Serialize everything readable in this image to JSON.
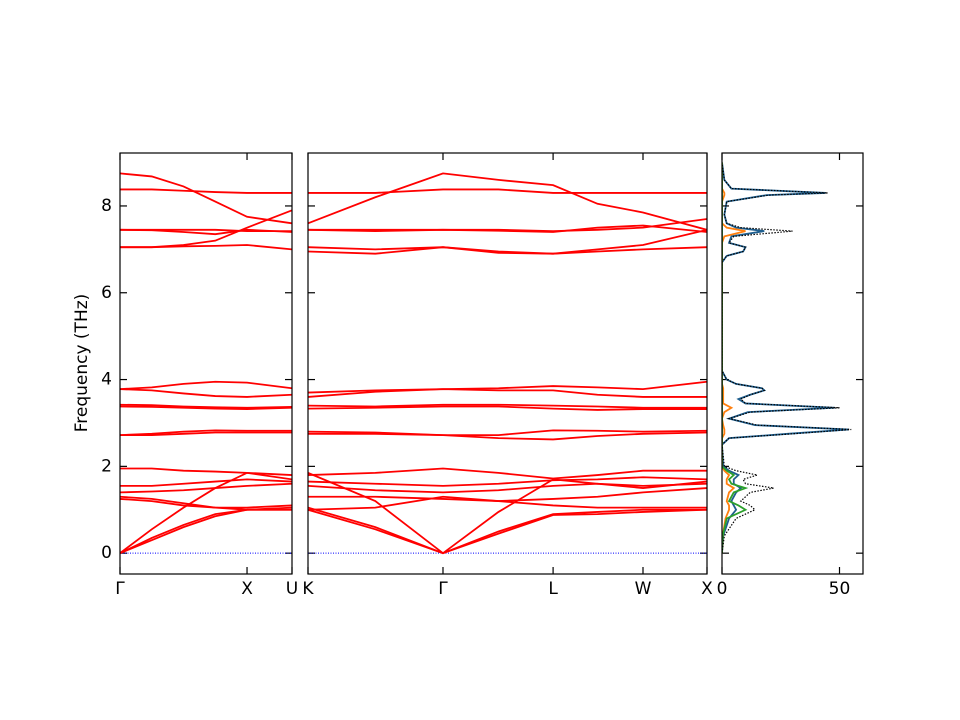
{
  "chart_data": [
    {
      "type": "line",
      "ylabel": "Frequency (THz)",
      "color": "#ff0000",
      "hline": 0,
      "hline_color": "#0000ff",
      "x": [
        0,
        0.25,
        0.5,
        0.75,
        1.0,
        1.354
      ],
      "xlim": [
        0,
        1.354
      ],
      "xticks": [
        {
          "value": 0,
          "label": "Γ"
        },
        {
          "value": 1.0,
          "label": "X"
        },
        {
          "value": 1.354,
          "label": "U"
        }
      ],
      "ylim": [
        -0.48,
        9.22
      ],
      "yticks": [
        0,
        2,
        4,
        6,
        8
      ],
      "series": [
        {
          "values": [
            8.75,
            8.68,
            8.45,
            8.1,
            7.75,
            7.6
          ]
        },
        {
          "values": [
            8.38,
            8.38,
            8.35,
            8.32,
            8.3,
            8.3
          ]
        },
        {
          "values": [
            7.45,
            7.45,
            7.45,
            7.45,
            7.42,
            7.42
          ]
        },
        {
          "values": [
            7.45,
            7.44,
            7.4,
            7.35,
            7.45,
            7.4
          ]
        },
        {
          "values": [
            7.05,
            7.05,
            7.1,
            7.2,
            7.5,
            7.9
          ]
        },
        {
          "values": [
            7.05,
            7.05,
            7.07,
            7.08,
            7.1,
            7.0
          ]
        },
        {
          "values": [
            3.78,
            3.82,
            3.9,
            3.95,
            3.93,
            3.8
          ]
        },
        {
          "values": [
            3.78,
            3.75,
            3.68,
            3.62,
            3.6,
            3.65
          ]
        },
        {
          "values": [
            3.42,
            3.41,
            3.38,
            3.36,
            3.35,
            3.37
          ]
        },
        {
          "values": [
            3.38,
            3.37,
            3.35,
            3.33,
            3.32,
            3.35
          ]
        },
        {
          "values": [
            2.72,
            2.75,
            2.8,
            2.83,
            2.82,
            2.82
          ]
        },
        {
          "values": [
            2.72,
            2.72,
            2.75,
            2.78,
            2.78,
            2.78
          ]
        },
        {
          "values": [
            1.95,
            1.95,
            1.9,
            1.88,
            1.85,
            1.8
          ]
        },
        {
          "values": [
            1.55,
            1.55,
            1.6,
            1.65,
            1.7,
            1.65
          ]
        },
        {
          "values": [
            1.4,
            1.42,
            1.45,
            1.5,
            1.55,
            1.6
          ]
        },
        {
          "values": [
            1.3,
            1.25,
            1.15,
            1.05,
            1.0,
            1.0
          ]
        },
        {
          "values": [
            1.25,
            1.2,
            1.1,
            1.05,
            1.05,
            1.1
          ]
        },
        {
          "values": [
            0,
            0.55,
            1.05,
            1.5,
            1.85,
            1.7
          ]
        },
        {
          "values": [
            0,
            0.35,
            0.65,
            0.9,
            1.0,
            1.0
          ]
        },
        {
          "values": [
            0,
            0.3,
            0.6,
            0.85,
            1.0,
            1.05
          ]
        }
      ]
    },
    {
      "type": "line",
      "color": "#ff0000",
      "hline": 0,
      "hline_color": "#0000ff",
      "x": [
        0,
        0.53,
        1.063,
        1.5,
        1.93,
        2.28,
        2.638,
        3.142
      ],
      "xlim": [
        0,
        3.142
      ],
      "xticks": [
        {
          "value": 0,
          "label": "K"
        },
        {
          "value": 1.063,
          "label": "Γ"
        },
        {
          "value": 1.93,
          "label": "L"
        },
        {
          "value": 2.638,
          "label": "W"
        },
        {
          "value": 3.142,
          "label": "X"
        }
      ],
      "series": [
        {
          "values": [
            8.3,
            8.3,
            8.38,
            8.38,
            8.3,
            8.3,
            8.3,
            8.3
          ]
        },
        {
          "values": [
            7.6,
            8.2,
            8.75,
            8.6,
            8.48,
            8.05,
            7.85,
            7.45
          ]
        },
        {
          "values": [
            7.45,
            7.45,
            7.45,
            7.45,
            7.42,
            7.45,
            7.5,
            7.7
          ]
        },
        {
          "values": [
            7.45,
            7.42,
            7.45,
            7.43,
            7.4,
            7.5,
            7.55,
            7.4
          ]
        },
        {
          "values": [
            7.05,
            7.0,
            7.05,
            6.95,
            6.9,
            7.0,
            7.1,
            7.45
          ]
        },
        {
          "values": [
            6.95,
            6.9,
            7.05,
            6.92,
            6.9,
            6.95,
            7.0,
            7.05
          ]
        },
        {
          "values": [
            3.7,
            3.75,
            3.78,
            3.8,
            3.85,
            3.82,
            3.78,
            3.95
          ]
        },
        {
          "values": [
            3.6,
            3.72,
            3.78,
            3.75,
            3.75,
            3.65,
            3.6,
            3.6
          ]
        },
        {
          "values": [
            3.4,
            3.38,
            3.42,
            3.42,
            3.4,
            3.38,
            3.35,
            3.35
          ]
        },
        {
          "values": [
            3.33,
            3.35,
            3.38,
            3.38,
            3.33,
            3.3,
            3.32,
            3.32
          ]
        },
        {
          "values": [
            2.8,
            2.78,
            2.72,
            2.72,
            2.83,
            2.82,
            2.8,
            2.82
          ]
        },
        {
          "values": [
            2.75,
            2.75,
            2.72,
            2.65,
            2.62,
            2.7,
            2.75,
            2.78
          ]
        },
        {
          "values": [
            1.8,
            1.85,
            1.95,
            1.85,
            1.72,
            1.8,
            1.9,
            1.9
          ]
        },
        {
          "values": [
            1.65,
            1.6,
            1.55,
            1.6,
            1.68,
            1.7,
            1.75,
            1.7
          ]
        },
        {
          "values": [
            1.55,
            1.45,
            1.4,
            1.45,
            1.55,
            1.6,
            1.55,
            1.6
          ]
        },
        {
          "values": [
            1.3,
            1.3,
            1.25,
            1.2,
            1.25,
            1.3,
            1.4,
            1.5
          ]
        },
        {
          "values": [
            1.0,
            1.05,
            1.3,
            1.2,
            1.1,
            1.05,
            1.05,
            1.05
          ]
        },
        {
          "values": [
            1.85,
            1.2,
            0,
            0.95,
            1.7,
            1.6,
            1.5,
            1.65
          ]
        },
        {
          "values": [
            1.05,
            0.6,
            0,
            0.5,
            0.9,
            0.95,
            1.0,
            1.0
          ]
        },
        {
          "values": [
            1.0,
            0.55,
            0,
            0.45,
            0.88,
            0.9,
            0.95,
            1.0
          ]
        }
      ]
    },
    {
      "type": "dos",
      "y": [
        0,
        0.4,
        0.8,
        1.0,
        1.1,
        1.2,
        1.4,
        1.5,
        1.6,
        1.7,
        1.8,
        1.9,
        2.0,
        2.5,
        2.65,
        2.75,
        2.85,
        2.95,
        3.1,
        3.25,
        3.35,
        3.45,
        3.55,
        3.65,
        3.75,
        3.8,
        3.9,
        4.0,
        4.2,
        6.7,
        6.85,
        6.95,
        7.05,
        7.15,
        7.3,
        7.42,
        7.5,
        7.6,
        7.8,
        8.1,
        8.25,
        8.3,
        8.4,
        8.6,
        9.0
      ],
      "xlim": [
        0,
        60
      ],
      "xticks": [
        0,
        50
      ],
      "series": [
        {
          "color": "#1f5f8f",
          "values": [
            0,
            0.5,
            3,
            6,
            5,
            4,
            6,
            8,
            5,
            5,
            7,
            3,
            0.5,
            0,
            3,
            28,
            54,
            14,
            3,
            11,
            48,
            10,
            7,
            12,
            18,
            17,
            6,
            2,
            0,
            0,
            2,
            9,
            10,
            3,
            4,
            18,
            6,
            2,
            1,
            2,
            19,
            44,
            4,
            1,
            0
          ]
        },
        {
          "color": "#ff7f0e",
          "values": [
            0,
            0.3,
            1.5,
            3,
            3,
            2,
            3,
            5,
            2,
            2,
            3,
            1,
            0,
            0,
            0,
            1,
            1,
            0.5,
            0,
            1,
            4,
            0.5,
            0.5,
            0.5,
            0.5,
            0.5,
            0,
            0,
            0,
            0,
            0,
            0,
            0,
            0,
            1,
            10,
            2,
            0,
            0,
            0,
            1,
            1,
            0,
            0,
            0
          ]
        },
        {
          "color": "#2ca02c",
          "values": [
            0,
            0.3,
            2,
            10,
            7,
            3,
            5,
            10,
            4,
            3,
            5,
            2,
            0,
            0,
            0,
            0,
            0,
            0,
            0,
            0,
            0,
            0,
            0,
            0,
            0,
            0,
            0,
            0,
            0,
            0,
            0,
            0,
            0,
            0,
            0,
            0,
            0,
            0,
            0,
            0,
            0,
            0,
            0,
            0,
            0
          ]
        },
        {
          "color": "#000000",
          "linestyle": "dotted",
          "values": [
            0,
            1,
            6,
            14,
            12,
            8,
            12,
            22,
            10,
            9,
            15,
            6,
            1,
            0,
            3,
            30,
            55,
            15,
            3,
            12,
            50,
            10,
            8,
            12,
            18,
            17,
            6,
            2,
            0,
            0,
            2,
            9,
            10,
            3,
            5,
            30,
            8,
            2,
            1,
            2,
            20,
            45,
            4,
            1,
            0
          ]
        }
      ]
    }
  ]
}
